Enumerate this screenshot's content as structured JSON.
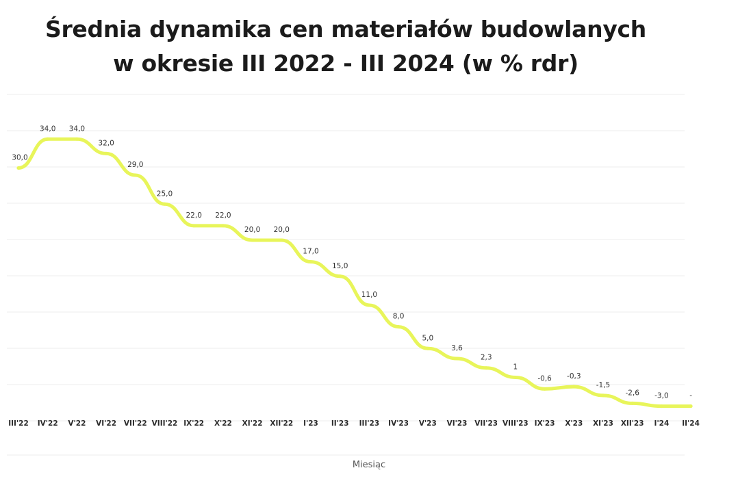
{
  "chart_data": {
    "type": "line",
    "title_line1": "Średnia dynamika cen materiałów budowlanych",
    "title_line2": "w okresie III 2022 - III 2024 (w % rdr)",
    "xlabel": "Miesiąc",
    "ylabel": "",
    "ylim": [
      -5,
      40
    ],
    "grid": true,
    "legend": "none",
    "line_color": "#e8f55a",
    "categories": [
      "III'22",
      "IV'22",
      "V'22",
      "VI'22",
      "VII'22",
      "VIII'22",
      "IX'22",
      "X'22",
      "XI'22",
      "XII'22",
      "I'23",
      "II'23",
      "III'23",
      "IV'23",
      "V'23",
      "VI'23",
      "VII'23",
      "VIII'23",
      "IX'23",
      "X'23",
      "XI'23",
      "XII'23",
      "I'24",
      "II'24"
    ],
    "values": [
      30.0,
      34.0,
      34.0,
      32.0,
      29.0,
      25.0,
      22.0,
      22.0,
      20.0,
      20.0,
      17.0,
      15.0,
      11.0,
      8.0,
      5.0,
      3.6,
      2.3,
      1,
      -0.6,
      -0.3,
      -1.5,
      -2.6,
      -3.0,
      -3.0
    ],
    "value_labels": [
      "30,0",
      "34,0",
      "34,0",
      "32,0",
      "29,0",
      "25,0",
      "22,0",
      "22,0",
      "20,0",
      "20,0",
      "17,0",
      "15,0",
      "11,0",
      "8,0",
      "5,0",
      "3,6",
      "2,3",
      "1",
      "-0,6",
      "-0,3",
      "-1,5",
      "-2,6",
      "-3,0",
      "-"
    ]
  }
}
